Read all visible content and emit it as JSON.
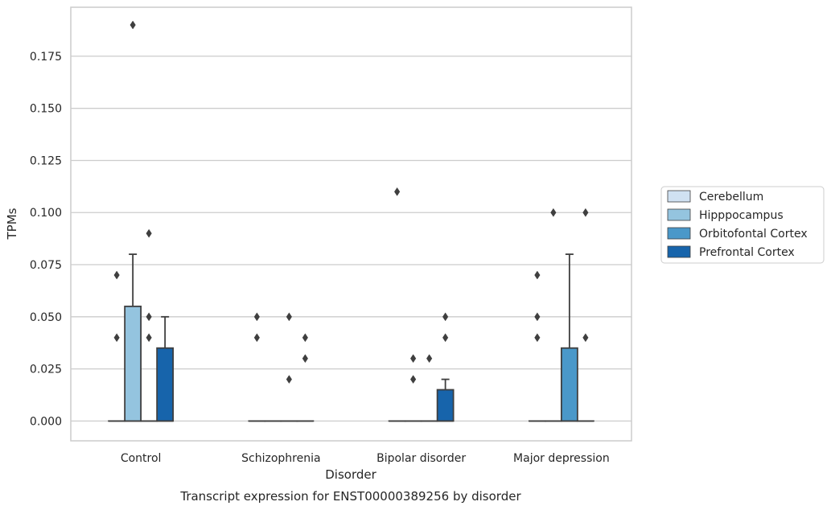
{
  "chart_data": {
    "type": "box",
    "title": "",
    "caption": "Transcript expression for ENST00000389256 by disorder",
    "xlabel": "Disorder",
    "ylabel": "TPMs",
    "ylim": [
      -0.0095,
      0.1985
    ],
    "y_ticks": [
      "0.000",
      "0.025",
      "0.050",
      "0.075",
      "0.100",
      "0.125",
      "0.150",
      "0.175"
    ],
    "grid": "horizontal",
    "legend_position": "center-right",
    "categories": [
      "Control",
      "Schizophrenia",
      "Bipolar disorder",
      "Major depression"
    ],
    "series": [
      {
        "name": "Cerebellum",
        "color": "#d0e1f2",
        "boxes": [
          {
            "q1": 0,
            "median": 0,
            "q3": 0,
            "whisker_low": 0,
            "whisker_high": 0,
            "outliers": [
              0.04,
              0.07
            ]
          },
          {
            "q1": 0,
            "median": 0,
            "q3": 0,
            "whisker_low": 0,
            "whisker_high": 0,
            "outliers": [
              0.04,
              0.05
            ]
          },
          {
            "q1": 0,
            "median": 0,
            "q3": 0,
            "whisker_low": 0,
            "whisker_high": 0,
            "outliers": [
              0.11
            ]
          },
          {
            "q1": 0,
            "median": 0,
            "q3": 0,
            "whisker_low": 0,
            "whisker_high": 0,
            "outliers": [
              0.04,
              0.05,
              0.07
            ]
          }
        ]
      },
      {
        "name": "Hipppocampus",
        "color": "#94c4df",
        "boxes": [
          {
            "q1": 0,
            "median": 0,
            "q3": 0.055,
            "whisker_low": 0,
            "whisker_high": 0.08,
            "outliers": [
              0.19
            ]
          },
          {
            "q1": 0,
            "median": 0,
            "q3": 0,
            "whisker_low": 0,
            "whisker_high": 0,
            "outliers": []
          },
          {
            "q1": 0,
            "median": 0,
            "q3": 0,
            "whisker_low": 0,
            "whisker_high": 0,
            "outliers": [
              0.02,
              0.03
            ]
          },
          {
            "q1": 0,
            "median": 0,
            "q3": 0,
            "whisker_low": 0,
            "whisker_high": 0,
            "outliers": [
              0.1
            ]
          }
        ]
      },
      {
        "name": "Orbitofontal Cortex",
        "color": "#4a98c9",
        "boxes": [
          {
            "q1": 0,
            "median": 0,
            "q3": 0,
            "whisker_low": 0,
            "whisker_high": 0,
            "outliers": [
              0.04,
              0.05,
              0.09
            ]
          },
          {
            "q1": 0,
            "median": 0,
            "q3": 0,
            "whisker_low": 0,
            "whisker_high": 0,
            "outliers": [
              0.02,
              0.05
            ]
          },
          {
            "q1": 0,
            "median": 0,
            "q3": 0,
            "whisker_low": 0,
            "whisker_high": 0,
            "outliers": [
              0.03
            ]
          },
          {
            "q1": 0,
            "median": 0,
            "q3": 0.035,
            "whisker_low": 0,
            "whisker_high": 0.08,
            "outliers": []
          }
        ]
      },
      {
        "name": "Prefrontal Cortex",
        "color": "#1764ab",
        "boxes": [
          {
            "q1": 0,
            "median": 0,
            "q3": 0.035,
            "whisker_low": 0,
            "whisker_high": 0.05,
            "outliers": []
          },
          {
            "q1": 0,
            "median": 0,
            "q3": 0,
            "whisker_low": 0,
            "whisker_high": 0,
            "outliers": [
              0.03,
              0.04
            ]
          },
          {
            "q1": 0,
            "median": 0,
            "q3": 0.015,
            "whisker_low": 0,
            "whisker_high": 0.02,
            "outliers": [
              0.04,
              0.05
            ]
          },
          {
            "q1": 0,
            "median": 0,
            "q3": 0,
            "whisker_low": 0,
            "whisker_high": 0,
            "outliers": [
              0.04,
              0.1
            ]
          }
        ]
      }
    ]
  }
}
